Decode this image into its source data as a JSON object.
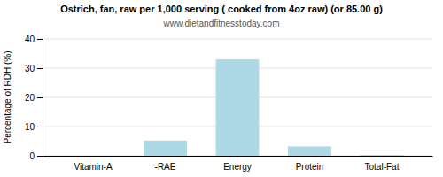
{
  "chart_data": {
    "type": "bar",
    "title": "Ostrich, fan, raw per 1,000 serving ( cooked from 4oz raw) (or 85.00 g)",
    "subtitle": "www.dietandfitnesstoday.com",
    "categories": [
      "Vitamin-A",
      "-RAE",
      "Energy",
      "Protein",
      "Total-Fat"
    ],
    "values": [
      0,
      5.2,
      33.0,
      3.2,
      0.3
    ],
    "color": "#add8e6",
    "ylabel": "Percentage of RDH (%)",
    "ylim": [
      0,
      40
    ],
    "yticks": [
      0,
      10,
      20,
      30,
      40
    ],
    "grid": true
  }
}
